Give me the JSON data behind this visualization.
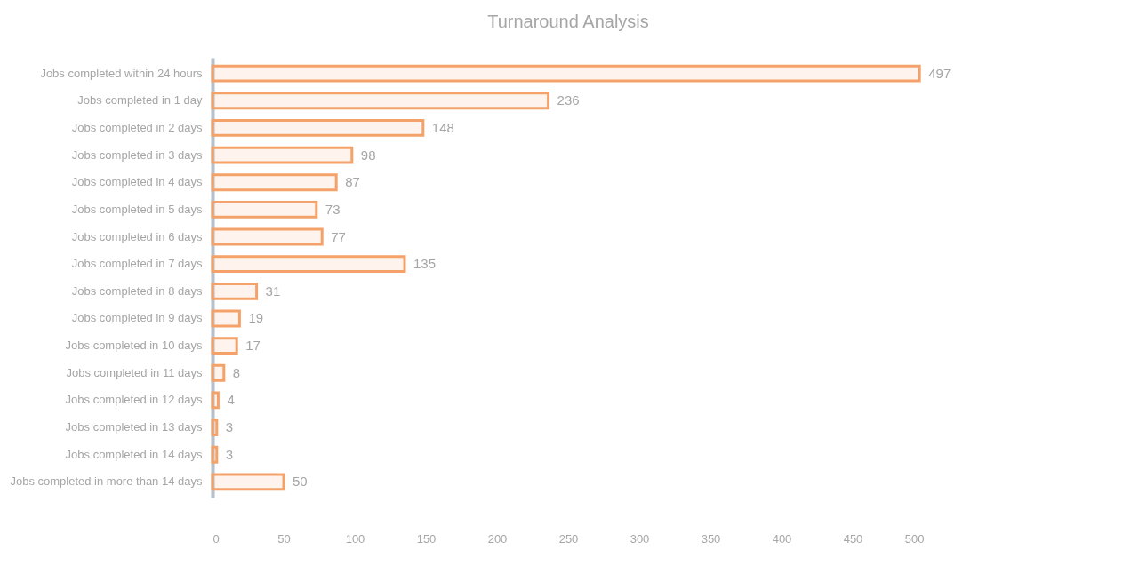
{
  "chart_data": {
    "type": "bar",
    "orientation": "horizontal",
    "title": "Turnaround  Analysis",
    "categories": [
      "Jobs completed within 24 hours",
      "Jobs completed in 1 day",
      "Jobs completed in 2 days",
      "Jobs completed in 3 days",
      "Jobs completed in 4 days",
      "Jobs completed in 5 days",
      "Jobs completed in 6 days",
      "Jobs completed in 7 days",
      "Jobs completed in 8 days",
      "Jobs completed in 9 days",
      "Jobs completed in 10 days",
      "Jobs completed in 11 days",
      "Jobs completed in 12 days",
      "Jobs completed in 13 days",
      "Jobs completed in 14 days",
      "Jobs completed in more than 14 days"
    ],
    "values": [
      497,
      236,
      148,
      98,
      87,
      73,
      77,
      135,
      31,
      19,
      17,
      8,
      4,
      3,
      3,
      50
    ],
    "color": "#f4a26a",
    "data_labels": true,
    "xlim": [
      0,
      500
    ],
    "xticks": [
      0,
      50,
      100,
      150,
      200,
      250,
      300,
      350,
      400,
      450,
      500
    ],
    "grid": false
  }
}
